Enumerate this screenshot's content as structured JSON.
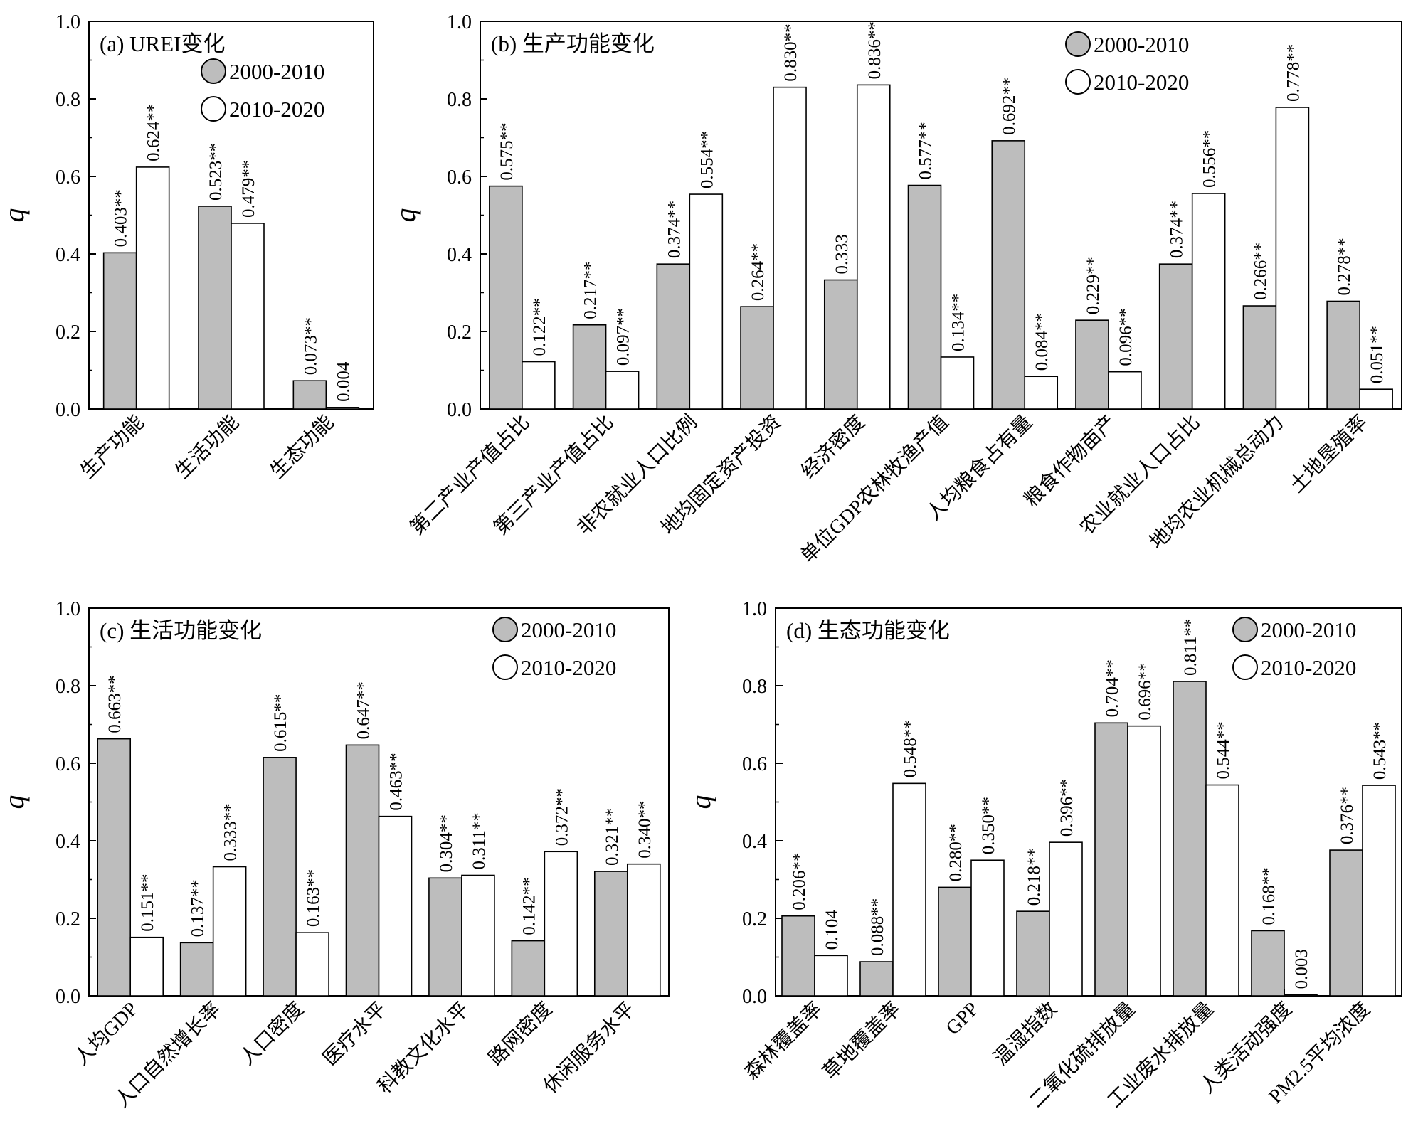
{
  "colors": {
    "s2000": "#bdbdbd",
    "s2010": "#ffffff",
    "stroke": "#000000"
  },
  "chart_data": [
    {
      "type": "bar",
      "title": "(a) UREI变化",
      "xlabel": "",
      "ylabel": "q",
      "ylim": [
        0,
        1.0
      ],
      "yticks": [
        "0.0",
        "0.2",
        "0.4",
        "0.6",
        "0.8",
        "1.0"
      ],
      "legend_position": "top-right",
      "categories": [
        "生产功能",
        "生活功能",
        "生态功能"
      ],
      "series": [
        {
          "name": "2000-2010",
          "values": [
            0.403,
            0.523,
            0.073
          ],
          "labels": [
            "0.403**",
            "0.523**",
            "0.073**"
          ]
        },
        {
          "name": "2010-2020",
          "values": [
            0.624,
            0.479,
            0.004
          ],
          "labels": [
            "0.624**",
            "0.479**",
            "0.004"
          ]
        }
      ]
    },
    {
      "type": "bar",
      "title": "(b) 生产功能变化",
      "xlabel": "",
      "ylabel": "q",
      "ylim": [
        0,
        1.0
      ],
      "yticks": [
        "0.0",
        "0.2",
        "0.4",
        "0.6",
        "0.8",
        "1.0"
      ],
      "legend_position": "top-right",
      "categories": [
        "第二产业产值占比",
        "第三产业产值占比",
        "非农就业人口比例",
        "地均固定资产投资",
        "经济密度",
        "单位GDP农林牧渔产值",
        "人均粮食占有量",
        "粮食作物亩产",
        "农业就业人口占比",
        "地均农业机械总动力",
        "土地垦殖率"
      ],
      "series": [
        {
          "name": "2000-2010",
          "values": [
            0.575,
            0.217,
            0.374,
            0.264,
            0.333,
            0.577,
            0.692,
            0.229,
            0.374,
            0.266,
            0.278
          ],
          "labels": [
            "0.575**",
            "0.217**",
            "0.374**",
            "0.264**",
            "0.333",
            "0.577**",
            "0.692**",
            "0.229**",
            "0.374**",
            "0.266**",
            "0.278**"
          ]
        },
        {
          "name": "2010-2020",
          "values": [
            0.122,
            0.097,
            0.554,
            0.83,
            0.836,
            0.134,
            0.084,
            0.096,
            0.556,
            0.778,
            0.051
          ],
          "labels": [
            "0.122**",
            "0.097**",
            "0.554**",
            "0.830**",
            "0.836**",
            "0.134**",
            "0.084**",
            "0.096**",
            "0.556**",
            "0.778**",
            "0.051**"
          ]
        }
      ]
    },
    {
      "type": "bar",
      "title": "(c) 生活功能变化",
      "xlabel": "",
      "ylabel": "q",
      "ylim": [
        0,
        1.0
      ],
      "yticks": [
        "0.0",
        "0.2",
        "0.4",
        "0.6",
        "0.8",
        "1.0"
      ],
      "legend_position": "top-right",
      "categories": [
        "人均GDP",
        "人口自然增长率",
        "人口密度",
        "医疗水平",
        "科教文化水平",
        "路网密度",
        "休闲服务水平"
      ],
      "series": [
        {
          "name": "2000-2010",
          "values": [
            0.663,
            0.137,
            0.615,
            0.647,
            0.304,
            0.142,
            0.321
          ],
          "labels": [
            "0.663**",
            "0.137**",
            "0.615**",
            "0.647**",
            "0.304**",
            "0.142**",
            "0.321**"
          ]
        },
        {
          "name": "2010-2020",
          "values": [
            0.151,
            0.333,
            0.163,
            0.463,
            0.311,
            0.372,
            0.34
          ],
          "labels": [
            "0.151**",
            "0.333**",
            "0.163**",
            "0.463**",
            "0.311**",
            "0.372**",
            "0.340**"
          ]
        }
      ]
    },
    {
      "type": "bar",
      "title": "(d) 生态功能变化",
      "xlabel": "",
      "ylabel": "q",
      "ylim": [
        0,
        1.0
      ],
      "yticks": [
        "0.0",
        "0.2",
        "0.4",
        "0.6",
        "0.8",
        "1.0"
      ],
      "legend_position": "top-right",
      "categories": [
        "森林覆盖率",
        "草地覆盖率",
        "GPP",
        "温湿指数",
        "二氧化硫排放量",
        "工业废水排放量",
        "人类活动强度",
        "PM2.5平均浓度"
      ],
      "series": [
        {
          "name": "2000-2010",
          "values": [
            0.206,
            0.088,
            0.28,
            0.218,
            0.704,
            0.811,
            0.168,
            0.376
          ],
          "labels": [
            "0.206**",
            "0.088**",
            "0.280**",
            "0.218**",
            "0.704**",
            "0.811**",
            "0.168**",
            "0.376**"
          ]
        },
        {
          "name": "2010-2020",
          "values": [
            0.104,
            0.548,
            0.35,
            0.396,
            0.696,
            0.544,
            0.003,
            0.543
          ],
          "labels": [
            "0.104",
            "0.548**",
            "0.350**",
            "0.396**",
            "0.696**",
            "0.544**",
            "0.003",
            "0.543**"
          ]
        }
      ]
    }
  ]
}
